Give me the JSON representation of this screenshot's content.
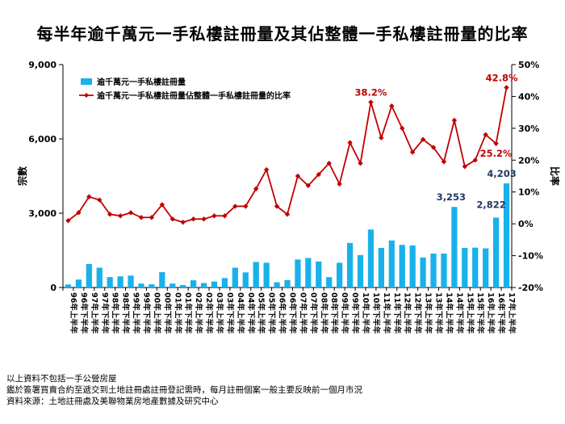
{
  "title": "每半年逾千萬元一手私樓註冊量及其佔整體一手私樓註冊量的比率",
  "footer": {
    "note1": "以上資料不包括一手公營房屋",
    "note2": "鑑於簽署買賣合約至遞交到土地註冊處註冊登記需時，每月註冊個案一般主要反映前一個月市況",
    "note3": "資料來源：土地註冊處及美聯物業房地產數據及研究中心"
  },
  "colors": {
    "bar": "#19b1ea",
    "line": "#c00000",
    "label_dark": "#1f3864",
    "label_red": "#c00000"
  },
  "chart_data": {
    "type": "bar+line",
    "ylabel": "宗數",
    "y2label": "比率",
    "ylim": [
      0,
      9000
    ],
    "yticks": [
      "0",
      "3,000",
      "6,000",
      "9,000"
    ],
    "ytick_values": [
      0,
      3000,
      6000,
      9000
    ],
    "y2lim": [
      -20,
      50
    ],
    "y2ticks": [
      "-20%",
      "-10%",
      "0%",
      "10%",
      "20%",
      "30%",
      "40%",
      "50%"
    ],
    "y2tick_values": [
      -20,
      -10,
      0,
      10,
      20,
      30,
      40,
      50
    ],
    "legend_position": "top-left",
    "categories": [
      "96年上半年",
      "96年下半年",
      "97年上半年",
      "97年下半年",
      "98年上半年",
      "98年下半年",
      "99年上半年",
      "99年下半年",
      "00年上半年",
      "00年下半年",
      "01年上半年",
      "01年下半年",
      "02年上半年",
      "02年下半年",
      "03年上半年",
      "03年下半年",
      "04年上半年",
      "04年下半年",
      "05年上半年",
      "05年下半年",
      "06年上半年",
      "06年下半年",
      "07年上半年",
      "07年下半年",
      "08年上半年",
      "08年下半年",
      "09年上半年",
      "09年下半年",
      "10年上半年",
      "10年下半年",
      "11年上半年",
      "11年下半年",
      "12年上半年",
      "12年下半年",
      "13年上半年",
      "13年下半年",
      "14年上半年",
      "14年下半年",
      "15年上半年",
      "15年下半年",
      "16年上半年",
      "16年下半年",
      "17年上半年"
    ],
    "series": [
      {
        "name": "逾千萬元一手私樓註冊量",
        "type": "bar",
        "values": [
          120,
          320,
          950,
          800,
          420,
          450,
          480,
          160,
          130,
          620,
          160,
          100,
          290,
          180,
          240,
          380,
          800,
          610,
          1030,
          1000,
          210,
          300,
          1130,
          1190,
          1050,
          420,
          1000,
          1800,
          1310,
          2340,
          1600,
          1900,
          1720,
          1700,
          1210,
          1370,
          1370,
          3253,
          1600,
          1610,
          1580,
          2822,
          4203
        ]
      },
      {
        "name": "逾千萬元一手私樓註冊量佔整體一手私樓註冊量的比率",
        "type": "line",
        "axis": "right",
        "values": [
          1.0,
          3.5,
          8.5,
          7.5,
          3.0,
          2.5,
          3.5,
          2.0,
          2.0,
          6.0,
          1.5,
          0.5,
          1.5,
          1.5,
          2.5,
          2.5,
          5.5,
          5.5,
          11.0,
          17.0,
          5.5,
          3.0,
          15.0,
          12.0,
          15.5,
          19.0,
          12.5,
          25.5,
          19.0,
          38.2,
          27.0,
          37.0,
          30.0,
          22.5,
          26.5,
          24.0,
          19.5,
          32.5,
          18.0,
          20.0,
          28.0,
          25.2,
          42.8
        ]
      }
    ],
    "annotations": [
      {
        "series": 0,
        "index": 37,
        "text": "3,253",
        "color": "dark"
      },
      {
        "series": 0,
        "index": 41,
        "text": "2,822",
        "color": "dark"
      },
      {
        "series": 0,
        "index": 42,
        "text": "4,203",
        "color": "dark"
      },
      {
        "series": 1,
        "index": 29,
        "text": "38.2%",
        "color": "red"
      },
      {
        "series": 1,
        "index": 41,
        "text": "25.2%",
        "color": "red"
      },
      {
        "series": 1,
        "index": 42,
        "text": "42.8%",
        "color": "red"
      }
    ]
  }
}
